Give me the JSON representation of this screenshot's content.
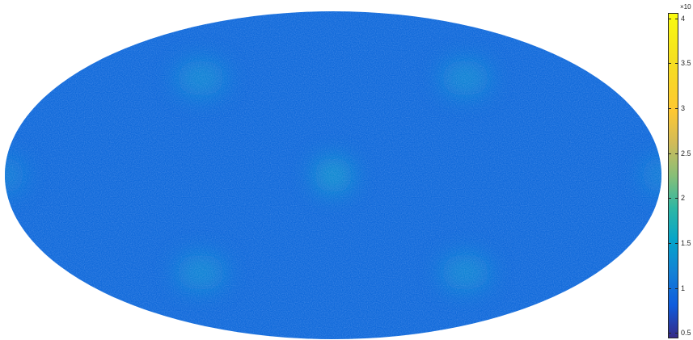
{
  "projection": "mollweide",
  "colormap": "parula",
  "colorbar": {
    "exponent_label": "×10",
    "range": [
      0.45,
      4.05
    ],
    "ticks": [
      {
        "value": 0.5,
        "label": "0.5"
      },
      {
        "value": 1,
        "label": "1"
      },
      {
        "value": 1.5,
        "label": "1.5"
      },
      {
        "value": 2,
        "label": "2"
      },
      {
        "value": 2.5,
        "label": "2.5"
      },
      {
        "value": 3,
        "label": "3"
      },
      {
        "value": 3.5,
        "label": "3.5"
      },
      {
        "value": 4,
        "label": "4"
      }
    ]
  },
  "map": {
    "base_value": 0.95,
    "hotspots": [
      {
        "lon": -90,
        "lat": 45,
        "value": 1.3
      },
      {
        "lon": 90,
        "lat": 45,
        "value": 1.3
      },
      {
        "lon": -90,
        "lat": -45,
        "value": 1.3
      },
      {
        "lon": 90,
        "lat": -45,
        "value": 1.3
      },
      {
        "lon": 0,
        "lat": 0,
        "value": 1.45
      },
      {
        "lon": -180,
        "lat": 0,
        "value": 1.2
      },
      {
        "lon": 180,
        "lat": 0,
        "value": 1.2
      }
    ]
  }
}
